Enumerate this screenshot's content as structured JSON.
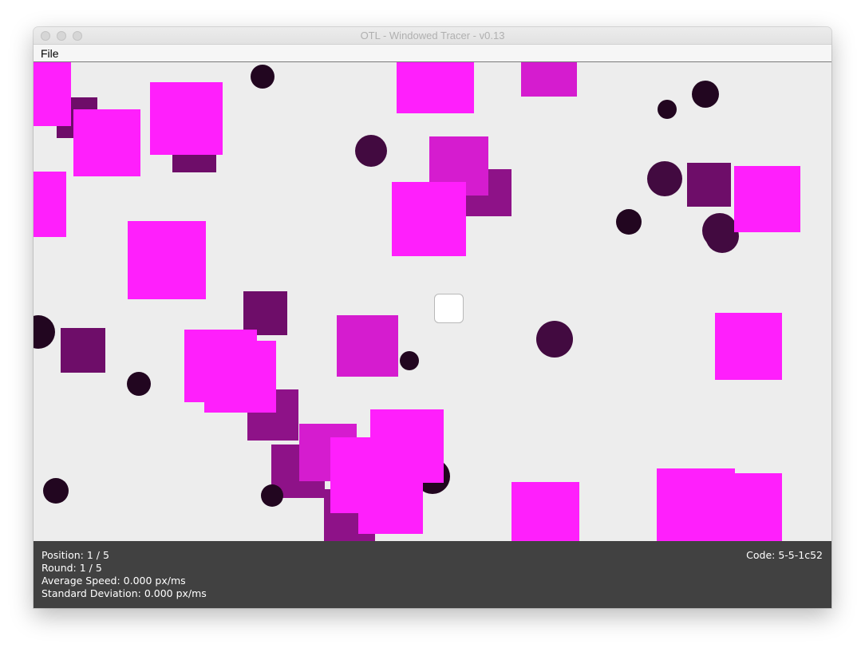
{
  "window": {
    "title": "OTL - Windowed Tracer - v0.13",
    "controls": [
      "close",
      "minimize",
      "zoom"
    ]
  },
  "menubar": {
    "items": [
      {
        "label": "File"
      }
    ]
  },
  "canvas": {
    "background": "#ededed",
    "colors": {
      "bright_magenta": "#ff1ffc",
      "magenta": "#d51ccf",
      "purple": "#8e1288",
      "dark_purple": "#6e0d69",
      "deep_purple": "#420a40",
      "near_black": "#220620"
    },
    "tracking_target": "white-square-target"
  },
  "status": {
    "position": "Position: 1 / 5",
    "round": "Round: 1 / 5",
    "average_speed": "Average Speed: 0.000 px/ms",
    "standard_deviation": "Standard Deviation: 0.000 px/ms",
    "code": "Code: 5-5-1c52"
  }
}
